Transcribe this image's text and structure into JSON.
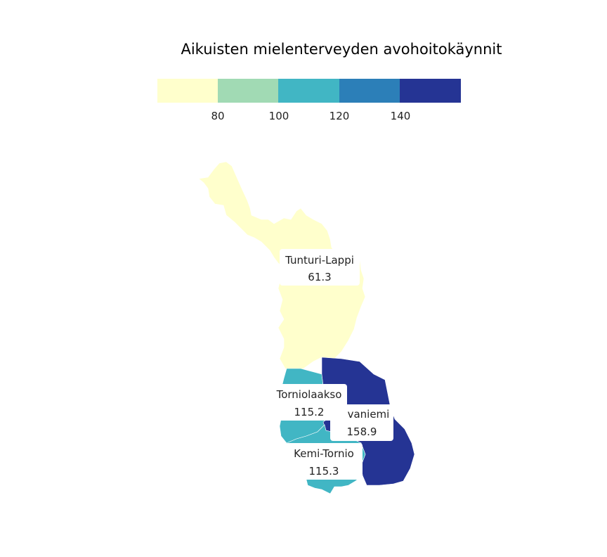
{
  "title": "Aikuisten mielenterveyden avohoitokäynnit",
  "legend": {
    "colors": [
      "#ffffcc",
      "#a1dab4",
      "#41b6c4",
      "#2c7fb8",
      "#253494"
    ],
    "ticks": [
      "80",
      "100",
      "120",
      "140"
    ]
  },
  "regions": [
    {
      "name": "Tunturi-Lappi",
      "value": "61.3",
      "color": "#ffffcc"
    },
    {
      "name": "Torniolaakso",
      "value": "115.2",
      "color": "#41b6c4"
    },
    {
      "name": "Rovaniemi",
      "value": "158.9",
      "color": "#253494"
    },
    {
      "name": "Kemi-Tornio",
      "value": "115.3",
      "color": "#41b6c4"
    }
  ]
}
